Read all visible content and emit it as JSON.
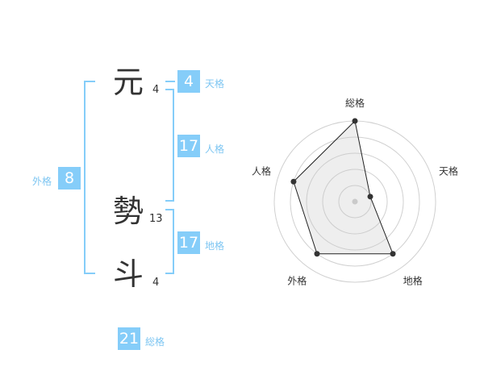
{
  "name": [
    {
      "char": "元",
      "strokes": "4"
    },
    {
      "char": "勢",
      "strokes": "13"
    },
    {
      "char": "斗",
      "strokes": "4"
    }
  ],
  "fortune": {
    "tenkaku": {
      "label": "天格",
      "value": "4"
    },
    "jinkaku": {
      "label": "人格",
      "value": "17"
    },
    "chikaku": {
      "label": "地格",
      "value": "17"
    },
    "gaikaku": {
      "label": "外格",
      "value": "8"
    },
    "soukaku": {
      "label": "総格",
      "value": "21"
    }
  },
  "colors": {
    "accent": "#85cdf9",
    "label": "#7ec6f2"
  },
  "chart_data": {
    "type": "radar",
    "axes": [
      "総格",
      "天格",
      "地格",
      "外格",
      "人格"
    ],
    "values": [
      5,
      1,
      4,
      4,
      4
    ],
    "range": [
      0,
      5
    ],
    "rings": 5
  }
}
